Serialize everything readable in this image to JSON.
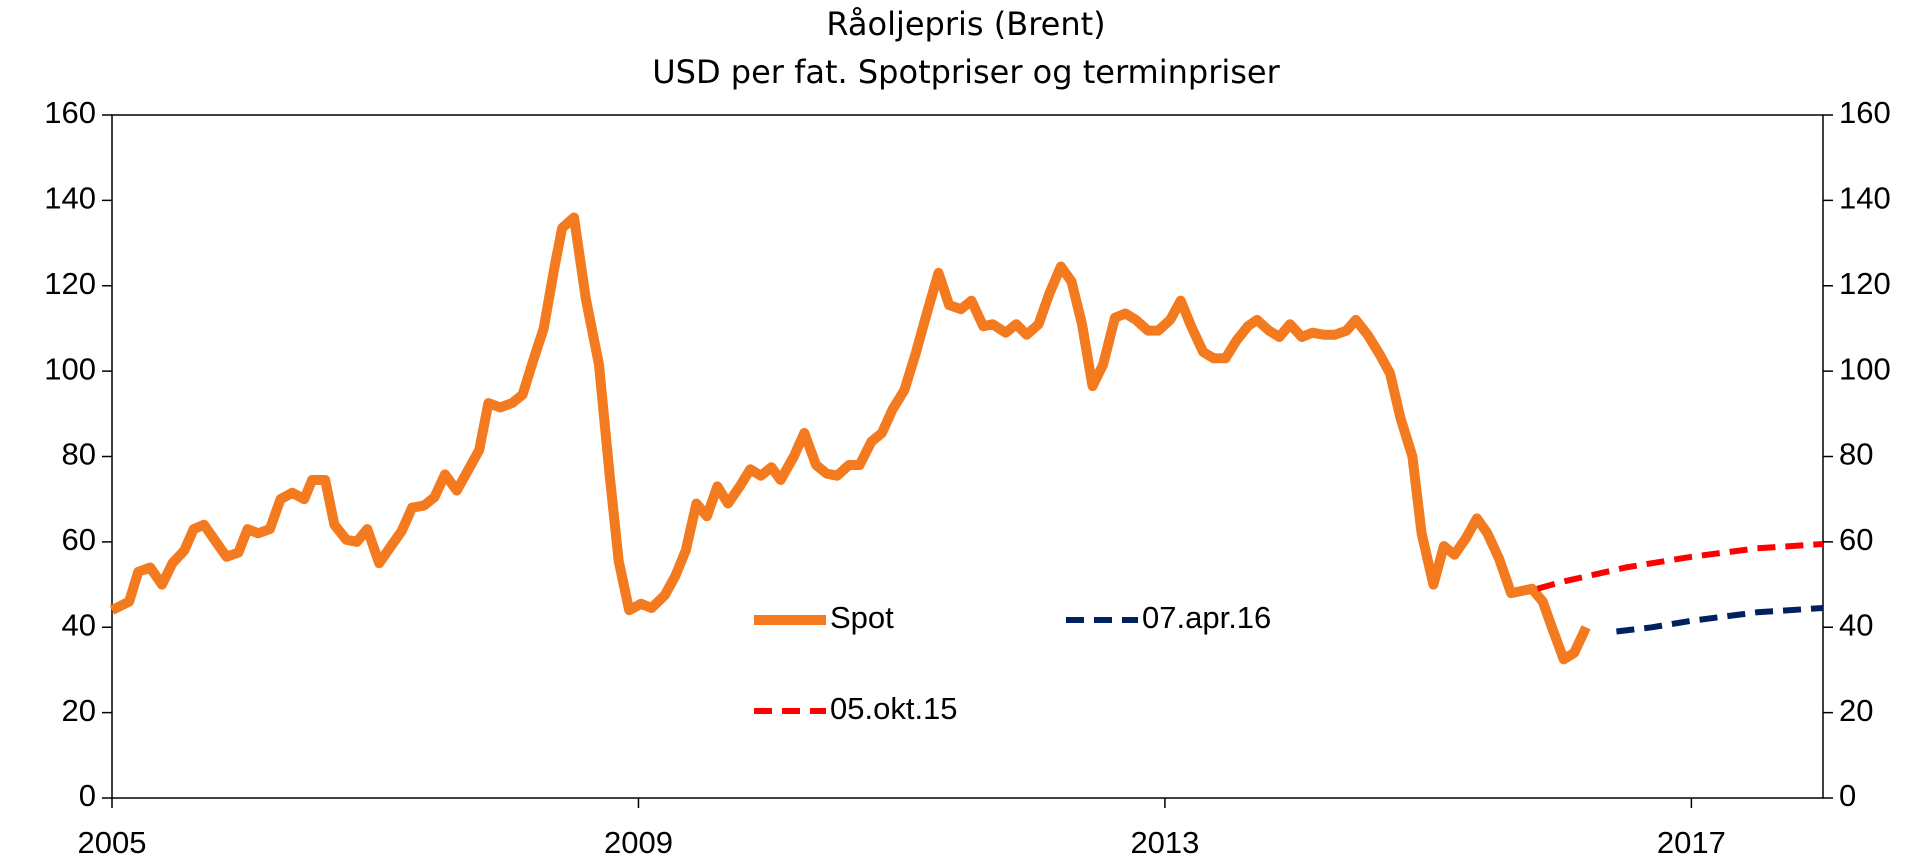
{
  "chart_data": {
    "type": "line",
    "title": "Råoljepris (Brent)",
    "subtitle": "USD per fat. Spotpriser og terminpriser",
    "xlim": [
      2005,
      2018
    ],
    "xticks": [
      2005,
      2009,
      2013,
      2017
    ],
    "ylim": [
      0,
      160
    ],
    "yticks": [
      0,
      20,
      40,
      60,
      80,
      100,
      120,
      140,
      160
    ],
    "y2lim": [
      0,
      160
    ],
    "y2ticks": [
      0,
      20,
      40,
      60,
      80,
      100,
      120,
      140,
      160
    ],
    "grid": false,
    "series": [
      {
        "name": "Spot",
        "color": "#f47a20",
        "dashed": false,
        "x": [
          2005.0,
          2005.13,
          2005.2,
          2005.29,
          2005.38,
          2005.46,
          2005.55,
          2005.62,
          2005.7,
          2005.79,
          2005.87,
          2005.96,
          2006.03,
          2006.11,
          2006.2,
          2006.28,
          2006.37,
          2006.46,
          2006.52,
          2006.62,
          2006.69,
          2006.78,
          2006.86,
          2006.94,
          2007.03,
          2007.12,
          2007.2,
          2007.28,
          2007.37,
          2007.45,
          2007.53,
          2007.62,
          2007.7,
          2007.79,
          2007.86,
          2007.95,
          2008.04,
          2008.12,
          2008.2,
          2008.28,
          2008.36,
          2008.42,
          2008.51,
          2008.6,
          2008.7,
          2008.78,
          2008.85,
          2008.93,
          2009.02,
          2009.1,
          2009.2,
          2009.28,
          2009.36,
          2009.44,
          2009.52,
          2009.6,
          2009.68,
          2009.77,
          2009.85,
          2009.93,
          2010.01,
          2010.08,
          2010.18,
          2010.26,
          2010.35,
          2010.43,
          2010.51,
          2010.6,
          2010.68,
          2010.77,
          2010.85,
          2010.93,
          2011.02,
          2011.1,
          2011.2,
          2011.28,
          2011.36,
          2011.45,
          2011.53,
          2011.62,
          2011.69,
          2011.79,
          2011.87,
          2011.95,
          2012.04,
          2012.12,
          2012.21,
          2012.29,
          2012.37,
          2012.45,
          2012.53,
          2012.62,
          2012.7,
          2012.78,
          2012.87,
          2012.95,
          2013.04,
          2013.12,
          2013.2,
          2013.29,
          2013.37,
          2013.46,
          2013.54,
          2013.63,
          2013.7,
          2013.79,
          2013.87,
          2013.95,
          2014.04,
          2014.12,
          2014.21,
          2014.29,
          2014.38,
          2014.45,
          2014.54,
          2014.63,
          2014.71,
          2014.79,
          2014.88,
          2014.95,
          2015.04,
          2015.12,
          2015.2,
          2015.29,
          2015.37,
          2015.45,
          2015.54,
          2015.63,
          2015.71,
          2015.79,
          2015.87,
          2015.94,
          2016.03,
          2016.11,
          2016.2
        ],
        "values": [
          44,
          46,
          53,
          54,
          50,
          55,
          58,
          63,
          64,
          60,
          56.5,
          57.5,
          63,
          62,
          63,
          70,
          71.5,
          70,
          74.5,
          74.5,
          64,
          60.5,
          60,
          63,
          55,
          59,
          62.5,
          68,
          68.5,
          70.5,
          75.8,
          72,
          76.5,
          81.5,
          92.5,
          91.5,
          92.5,
          94.5,
          102.5,
          110,
          124,
          133.5,
          136,
          117,
          101.5,
          76,
          55.5,
          44,
          45.5,
          44.5,
          47.5,
          52,
          58,
          69,
          66,
          73,
          69,
          73,
          77,
          75.5,
          77.5,
          74.5,
          80,
          85.5,
          78,
          76,
          75.5,
          78,
          78,
          83.5,
          85.5,
          91,
          95.5,
          103.5,
          114.5,
          123,
          115.5,
          114.5,
          116.5,
          110.5,
          111,
          109,
          111,
          108.5,
          111,
          118,
          124.5,
          121,
          111,
          96.5,
          101.5,
          112.5,
          113.5,
          112,
          109.5,
          109.5,
          112,
          116.5,
          110.5,
          104.5,
          103,
          103,
          107,
          110.5,
          112,
          109.5,
          108,
          111,
          108,
          109,
          108.5,
          108.5,
          109.5,
          112,
          108.5,
          104,
          99.5,
          89,
          80,
          62,
          50,
          59,
          57,
          61,
          65.5,
          62,
          56,
          48,
          48.5,
          49,
          46,
          40,
          32.5,
          34,
          40
        ]
      },
      {
        "name": "07.apr.16",
        "color": "#002060",
        "dashed": true,
        "x": [
          2016.43,
          2016.7,
          2017,
          2017.5,
          2018
        ],
        "values": [
          39,
          40,
          41.5,
          43.5,
          44.5
        ]
      },
      {
        "name": "05.okt.15",
        "color": "#ff0000",
        "dashed": true,
        "x": [
          2015.83,
          2016,
          2016.5,
          2017,
          2017.5,
          2018
        ],
        "values": [
          49,
          50.5,
          54,
          56.5,
          58.5,
          59.5
        ]
      }
    ]
  }
}
